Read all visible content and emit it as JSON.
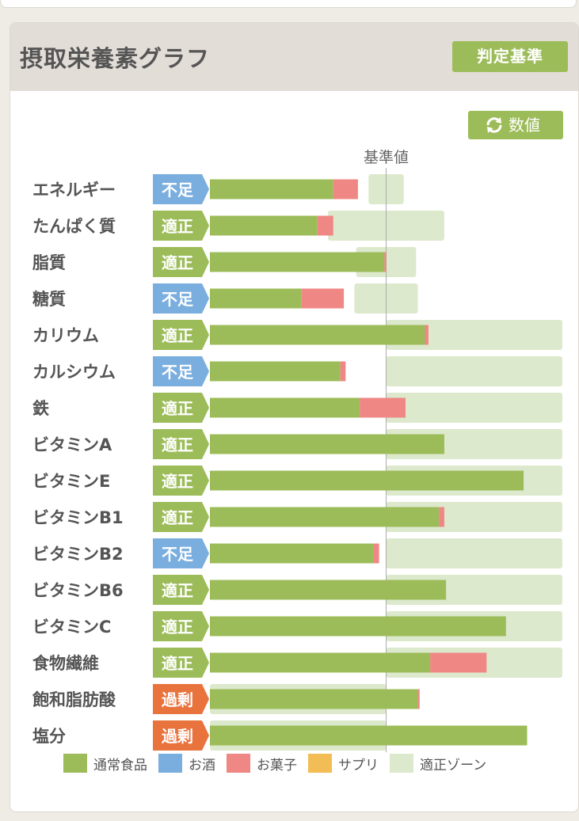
{
  "header": {
    "title": "摂取栄養素グラフ",
    "criteria_button": "判定基準",
    "value_button": "数値"
  },
  "colors": {
    "normal_food": "#9cbc59",
    "alcohol": "#7aaede",
    "snacks": "#ef8784",
    "supplement": "#f3bd56",
    "appropriate_zone": "#dde9cc",
    "status_insufficient": "#7aaede",
    "status_appropriate": "#9cbc59",
    "status_excess": "#e9733d"
  },
  "chart_data": {
    "type": "bar",
    "orientation": "horizontal",
    "stacked": true,
    "reference_label": "基準値",
    "reference_value": 100,
    "xlim": [
      0,
      200
    ],
    "categories": [
      "エネルギー",
      "たんぱく質",
      "脂質",
      "糖質",
      "カリウム",
      "カルシウム",
      "鉄",
      "ビタミンA",
      "ビタミンE",
      "ビタミンB1",
      "ビタミンB2",
      "ビタミンB6",
      "ビタミンC",
      "食物繊維",
      "飽和脂肪酸",
      "塩分"
    ],
    "status": [
      "不足",
      "適正",
      "適正",
      "不足",
      "適正",
      "不足",
      "適正",
      "適正",
      "適正",
      "適正",
      "不足",
      "適正",
      "適正",
      "適正",
      "過剰",
      "過剰"
    ],
    "status_type": [
      "insufficient",
      "appropriate",
      "appropriate",
      "insufficient",
      "appropriate",
      "insufficient",
      "appropriate",
      "appropriate",
      "appropriate",
      "appropriate",
      "insufficient",
      "appropriate",
      "appropriate",
      "appropriate",
      "excess",
      "excess"
    ],
    "series": [
      {
        "name": "通常食品",
        "values": [
          70,
          61,
          99,
          52,
          122,
          74,
          85,
          133,
          178,
          130,
          93,
          134,
          168,
          125,
          118,
          180
        ]
      },
      {
        "name": "お酒",
        "values": [
          0,
          0,
          0,
          0,
          0,
          0,
          0,
          0,
          0,
          0,
          0,
          0,
          0,
          0,
          0,
          0
        ]
      },
      {
        "name": "お菓子",
        "values": [
          14,
          9,
          1,
          24,
          2,
          3,
          26,
          0,
          0,
          3,
          3,
          0,
          0,
          32,
          1,
          0
        ]
      },
      {
        "name": "サプリ",
        "values": [
          0,
          0,
          0,
          0,
          0,
          0,
          0,
          0,
          0,
          0,
          0,
          0,
          0,
          0,
          0,
          0
        ]
      }
    ],
    "appropriate_zone": [
      [
        90,
        110
      ],
      [
        67,
        133
      ],
      [
        83,
        117
      ],
      [
        82,
        118
      ],
      [
        100,
        200
      ],
      [
        100,
        200
      ],
      [
        100,
        200
      ],
      [
        100,
        200
      ],
      [
        100,
        200
      ],
      [
        100,
        200
      ],
      [
        100,
        200
      ],
      [
        100,
        200
      ],
      [
        100,
        200
      ],
      [
        100,
        200
      ],
      [
        0,
        100
      ],
      [
        0,
        100
      ]
    ],
    "legend": [
      "通常食品",
      "お酒",
      "お菓子",
      "サプリ",
      "適正ゾーン"
    ],
    "legend_position": "bottom"
  }
}
